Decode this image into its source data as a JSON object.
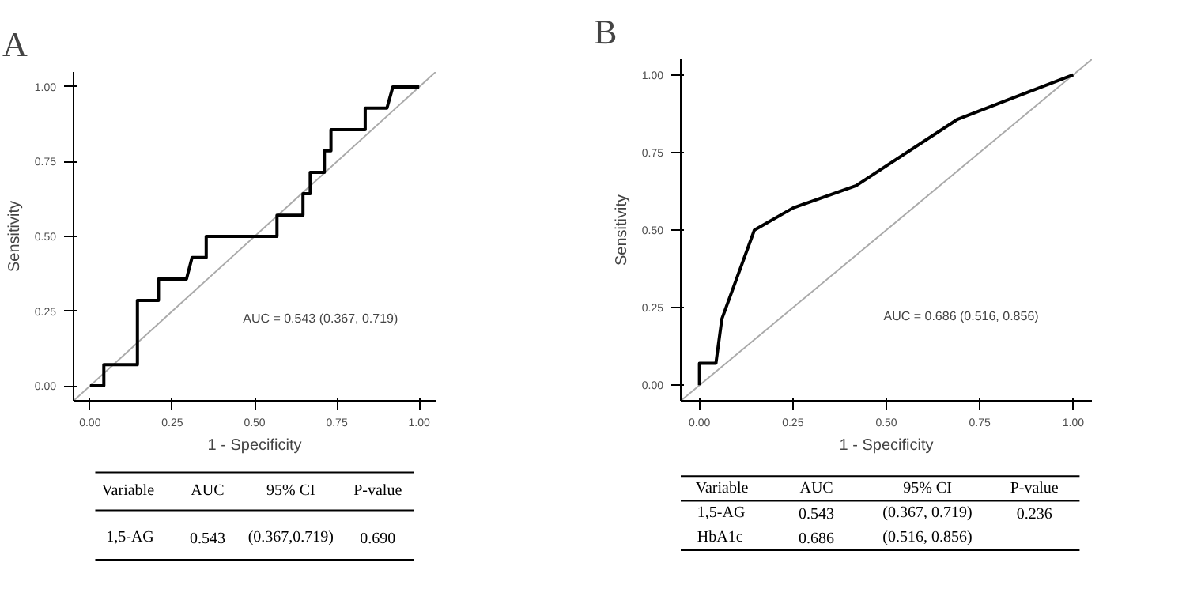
{
  "chart_data": [
    {
      "type": "line",
      "title": "A",
      "xlabel": "1 - Specificity",
      "ylabel": "Sensitivity",
      "xlim": [
        -0.05,
        1.05
      ],
      "ylim": [
        -0.05,
        1.05
      ],
      "xticks": [
        {
          "value": 0,
          "label": "0.00"
        },
        {
          "value": 0.25,
          "label": "0.25"
        },
        {
          "value": 0.5,
          "label": "0.50"
        },
        {
          "value": 0.75,
          "label": "0.75"
        },
        {
          "value": 1,
          "label": "1.00"
        }
      ],
      "yticks": [
        {
          "value": 0,
          "label": "0.00"
        },
        {
          "value": 0.25,
          "label": "0.25"
        },
        {
          "value": 0.5,
          "label": "0.50"
        },
        {
          "value": 0.75,
          "label": "0.75"
        },
        {
          "value": 1,
          "label": "1.00"
        }
      ],
      "grid": false,
      "series": [
        {
          "color": "#aaaaaa",
          "x": [
            -0.05,
            1.05
          ],
          "values": [
            -0.05,
            1.05
          ]
        },
        {
          "color": "#000000",
          "x": [
            0,
            0.042,
            0.042,
            0.144,
            0.144,
            0.208,
            0.208,
            0.293,
            0.31,
            0.353,
            0.353,
            0.568,
            0.568,
            0.647,
            0.647,
            0.669,
            0.669,
            0.712,
            0.712,
            0.732,
            0.732,
            0.836,
            0.836,
            0.902,
            0.92,
            1.0
          ],
          "values": [
            0,
            0,
            0.071,
            0.071,
            0.286,
            0.286,
            0.357,
            0.357,
            0.429,
            0.429,
            0.5,
            0.5,
            0.571,
            0.571,
            0.643,
            0.643,
            0.714,
            0.714,
            0.786,
            0.786,
            0.857,
            0.857,
            0.929,
            0.929,
            1.0,
            1.0
          ]
        }
      ],
      "annotations": [
        "AUC = 0.543 (0.367, 0.719)",
        "Variable",
        "AUC",
        "95% CI",
        "P-value",
        "1,5-AG",
        "0.543",
        "(0.367,0.719)",
        "0.690"
      ]
    },
    {
      "type": "line",
      "title": "B",
      "xlabel": "1 - Specificity",
      "ylabel": "Sensitivity",
      "xlim": [
        -0.05,
        1.05
      ],
      "ylim": [
        -0.05,
        1.05
      ],
      "xticks": [
        {
          "value": 0,
          "label": "0.00"
        },
        {
          "value": 0.25,
          "label": "0.25"
        },
        {
          "value": 0.5,
          "label": "0.50"
        },
        {
          "value": 0.75,
          "label": "0.75"
        },
        {
          "value": 1,
          "label": "1.00"
        }
      ],
      "yticks": [
        {
          "value": 0,
          "label": "0.00"
        },
        {
          "value": 0.25,
          "label": "0.25"
        },
        {
          "value": 0.5,
          "label": "0.50"
        },
        {
          "value": 0.75,
          "label": "0.75"
        },
        {
          "value": 1,
          "label": "1.00"
        }
      ],
      "grid": false,
      "series": [
        {
          "color": "#aaaaaa",
          "x": [
            -0.05,
            1.05
          ],
          "values": [
            -0.05,
            1.05
          ]
        },
        {
          "color": "#000000",
          "x": [
            0,
            0,
            0.044,
            0.06,
            0.147,
            0.25,
            0.419,
            0.691,
            1.0
          ],
          "values": [
            0,
            0.071,
            0.071,
            0.214,
            0.5,
            0.571,
            0.643,
            0.857,
            1.0
          ]
        }
      ],
      "annotations": [
        "AUC = 0.686 (0.516, 0.856)",
        "Variable",
        "AUC",
        "95% CI",
        "P-value",
        "1,5-AG",
        "0.543",
        "(0.367, 0.719)",
        "0.236",
        "HbA1c",
        "0.686",
        "(0.516, 0.856)"
      ]
    }
  ]
}
